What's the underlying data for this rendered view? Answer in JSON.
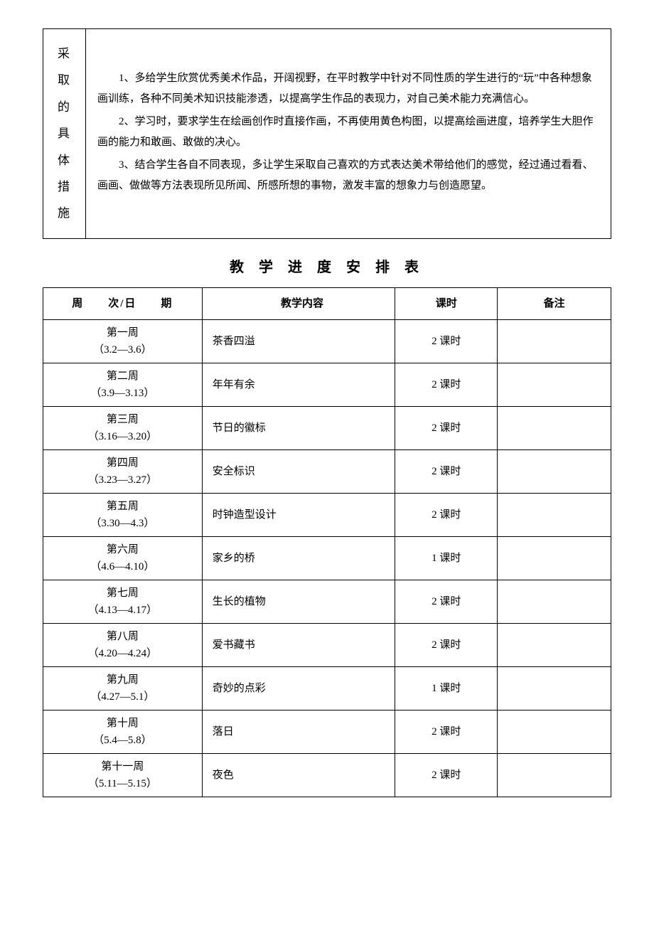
{
  "measures": {
    "label_chars": [
      "采",
      "取",
      "的",
      "具",
      "体",
      "措",
      "施"
    ],
    "paragraphs": [
      "1、多给学生欣赏优秀美术作品，开阔视野，在平时教学中针对不同性质的学生进行的“玩”中各种想象画训练，各种不同美术知识技能渗透，以提高学生作品的表现力，对自己美术能力充满信心。",
      "2、学习时，要求学生在绘画创作时直接作画，不再使用黄色构图，以提高绘画进度，培养学生大胆作画的能力和敢画、敢做的决心。",
      "3、结合学生各自不同表现，多让学生采取自己喜欢的方式表达美术带给他们的感觉，经过通过看看、画画、做做等方法表现所见所闻、所感所想的事物，激发丰富的想象力与创造愿望。"
    ]
  },
  "schedule": {
    "title": "教 学 进 度 安 排 表",
    "headers": {
      "week": "周　　次/日　　期",
      "content": "教学内容",
      "hours": "课时",
      "note": "备注"
    },
    "rows": [
      {
        "week": "第一周",
        "date": "（3.2—3.6）",
        "content": "茶香四溢",
        "hours": "2 课时",
        "note": ""
      },
      {
        "week": "第二周",
        "date": "（3.9—3.13）",
        "content": "年年有余",
        "hours": "2 课时",
        "note": ""
      },
      {
        "week": "第三周",
        "date": "（3.16—3.20）",
        "content": "节日的徽标",
        "hours": "2 课时",
        "note": ""
      },
      {
        "week": "第四周",
        "date": "（3.23—3.27）",
        "content": "安全标识",
        "hours": "2 课时",
        "note": ""
      },
      {
        "week": "第五周",
        "date": "（3.30—4.3）",
        "content": "时钟造型设计",
        "hours": "2 课时",
        "note": ""
      },
      {
        "week": "第六周",
        "date": "（4.6—4.10）",
        "content": "家乡的桥",
        "hours": "1 课时",
        "note": ""
      },
      {
        "week": "第七周",
        "date": "（4.13—4.17）",
        "content": "生长的植物",
        "hours": "2 课时",
        "note": ""
      },
      {
        "week": "第八周",
        "date": "（4.20—4.24）",
        "content": "爱书藏书",
        "hours": "2 课时",
        "note": ""
      },
      {
        "week": "第九周",
        "date": "（4.27—5.1）",
        "content": "奇妙的点彩",
        "hours": "1 课时",
        "note": ""
      },
      {
        "week": "第十周",
        "date": "（5.4—5.8）",
        "content": "落日",
        "hours": "2 课时",
        "note": ""
      },
      {
        "week": "第十一周",
        "date": "（5.11—5.15）",
        "content": "夜色",
        "hours": "2 课时",
        "note": ""
      }
    ]
  }
}
